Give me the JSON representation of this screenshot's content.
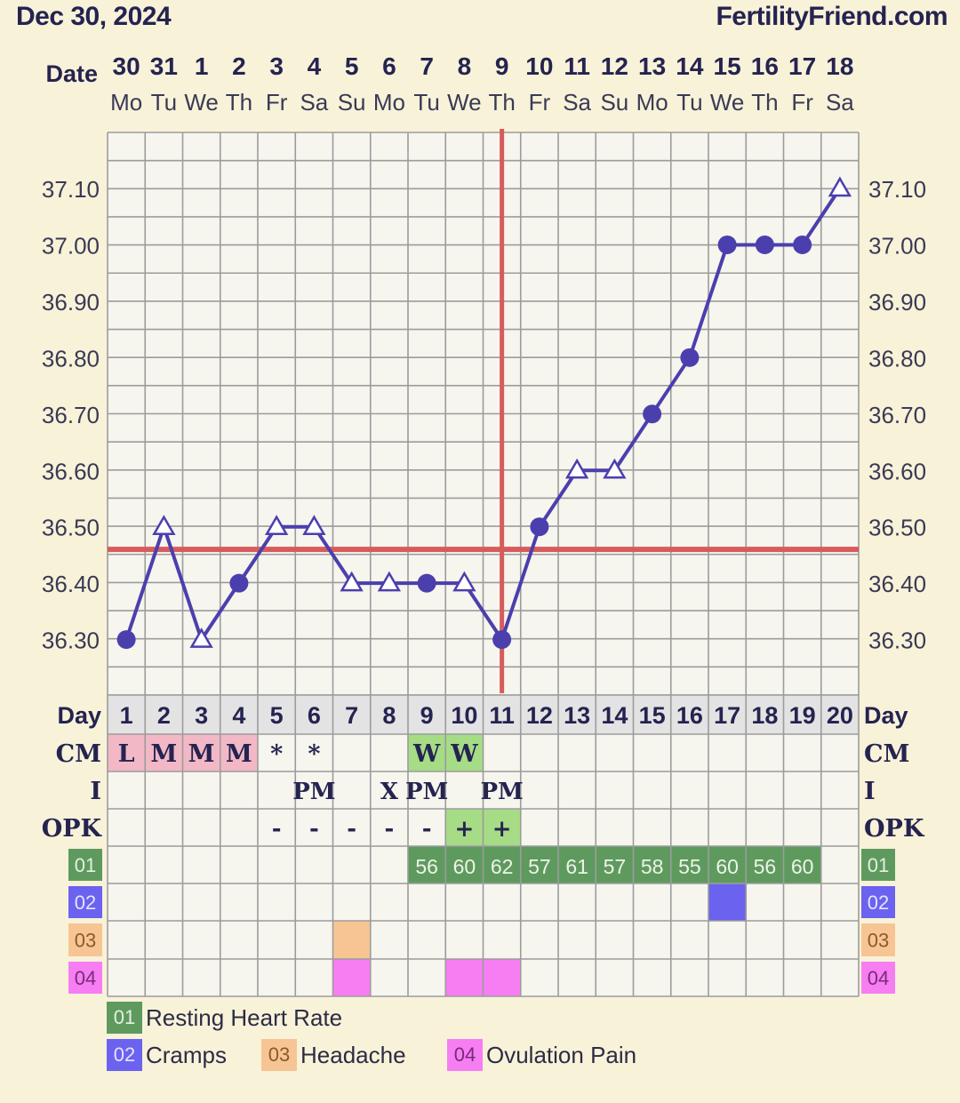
{
  "header": {
    "date": "Dec 30, 2024",
    "site": "FertilityFriend.com"
  },
  "colors": {
    "background": "#f8f2d9",
    "grid_bg": "#f6f5ee",
    "grid_line": "#9c9c9c",
    "temp_line": "#4b3fae",
    "coverline": "#d65c5c",
    "menses": "#f2b8c6",
    "fertile_green": "#a6dc86",
    "hr_green": "#5e9a5e",
    "cramps": "#6b62ef",
    "headache": "#f7c594",
    "ovulation_pain": "#f67ef2",
    "day_row": "#e3e3e3"
  },
  "chart_data": {
    "type": "line",
    "title": "",
    "xlabel": "Date",
    "ylabel": "",
    "date_label": "Date",
    "dates": [
      "30",
      "31",
      "1",
      "2",
      "3",
      "4",
      "5",
      "6",
      "7",
      "8",
      "9",
      "10",
      "11",
      "12",
      "13",
      "14",
      "15",
      "16",
      "17",
      "18"
    ],
    "weekdays": [
      "Mo",
      "Tu",
      "We",
      "Th",
      "Fr",
      "Sa",
      "Su",
      "Mo",
      "Tu",
      "We",
      "Th",
      "Fr",
      "Sa",
      "Su",
      "Mo",
      "Tu",
      "We",
      "Th",
      "Fr",
      "Sa"
    ],
    "cycle_days": [
      "1",
      "2",
      "3",
      "4",
      "5",
      "6",
      "7",
      "8",
      "9",
      "10",
      "11",
      "12",
      "13",
      "14",
      "15",
      "16",
      "17",
      "18",
      "19",
      "20"
    ],
    "series": [
      {
        "values": [
          36.3,
          36.5,
          36.3,
          36.4,
          36.5,
          36.5,
          36.4,
          36.4,
          36.4,
          36.4,
          36.3,
          36.5,
          36.6,
          36.6,
          36.7,
          36.8,
          37.0,
          37.0,
          37.0,
          37.1
        ],
        "markers": [
          "circle",
          "triangle",
          "triangle",
          "circle",
          "triangle",
          "triangle",
          "triangle",
          "triangle",
          "circle",
          "triangle",
          "circle",
          "circle",
          "triangle",
          "triangle",
          "circle",
          "circle",
          "circle",
          "circle",
          "circle",
          "triangle"
        ]
      }
    ],
    "y_ticks": [
      "36.30",
      "36.40",
      "36.50",
      "36.60",
      "36.70",
      "36.80",
      "36.90",
      "37.00",
      "37.10"
    ],
    "y_tick_values": [
      36.3,
      36.4,
      36.5,
      36.6,
      36.7,
      36.8,
      36.9,
      37.0,
      37.1
    ],
    "ylim": [
      36.2,
      37.2
    ],
    "coverline": 36.46,
    "ovulation_cycle_day": 11,
    "grid": true,
    "rows": {
      "day_label": "Day",
      "cm_label": "CM",
      "cm": [
        "L",
        "M",
        "M",
        "M",
        "*",
        "*",
        "",
        "",
        "W",
        "W",
        "",
        "",
        "",
        "",
        "",
        "",
        "",
        "",
        "",
        ""
      ],
      "cm_style": [
        "menses",
        "menses",
        "menses",
        "menses",
        "",
        "",
        "",
        "",
        "fertile",
        "fertile",
        "",
        "",
        "",
        "",
        "",
        "",
        "",
        "",
        "",
        ""
      ],
      "i_label": "I",
      "i": [
        "",
        "",
        "",
        "",
        "",
        "PM",
        "",
        "X",
        "PM",
        "",
        "PM",
        "",
        "",
        "",
        "",
        "",
        "",
        "",
        "",
        ""
      ],
      "opk_label": "OPK",
      "opk": [
        "",
        "",
        "",
        "",
        "-",
        "-",
        "-",
        "-",
        "-",
        "+",
        "+",
        "",
        "",
        "",
        "",
        "",
        "",
        "",
        "",
        ""
      ],
      "opk_style": [
        "",
        "",
        "",
        "",
        "",
        "",
        "",
        "",
        "",
        "fertile",
        "fertile",
        "",
        "",
        "",
        "",
        "",
        "",
        "",
        "",
        ""
      ],
      "custom": [
        {
          "code": "01",
          "label": "Resting Heart Rate",
          "color": "#5e9a5e",
          "values": [
            "",
            "",
            "",
            "",
            "",
            "",
            "",
            "",
            "56",
            "60",
            "62",
            "57",
            "61",
            "57",
            "58",
            "55",
            "60",
            "56",
            "60",
            ""
          ]
        },
        {
          "code": "02",
          "label": "Cramps",
          "color": "#6b62ef",
          "marked": [
            17
          ]
        },
        {
          "code": "03",
          "label": "Headache",
          "color": "#f7c594",
          "marked": [
            7
          ]
        },
        {
          "code": "04",
          "label": "Ovulation Pain",
          "color": "#f67ef2",
          "marked": [
            7,
            10,
            11
          ]
        }
      ]
    }
  }
}
